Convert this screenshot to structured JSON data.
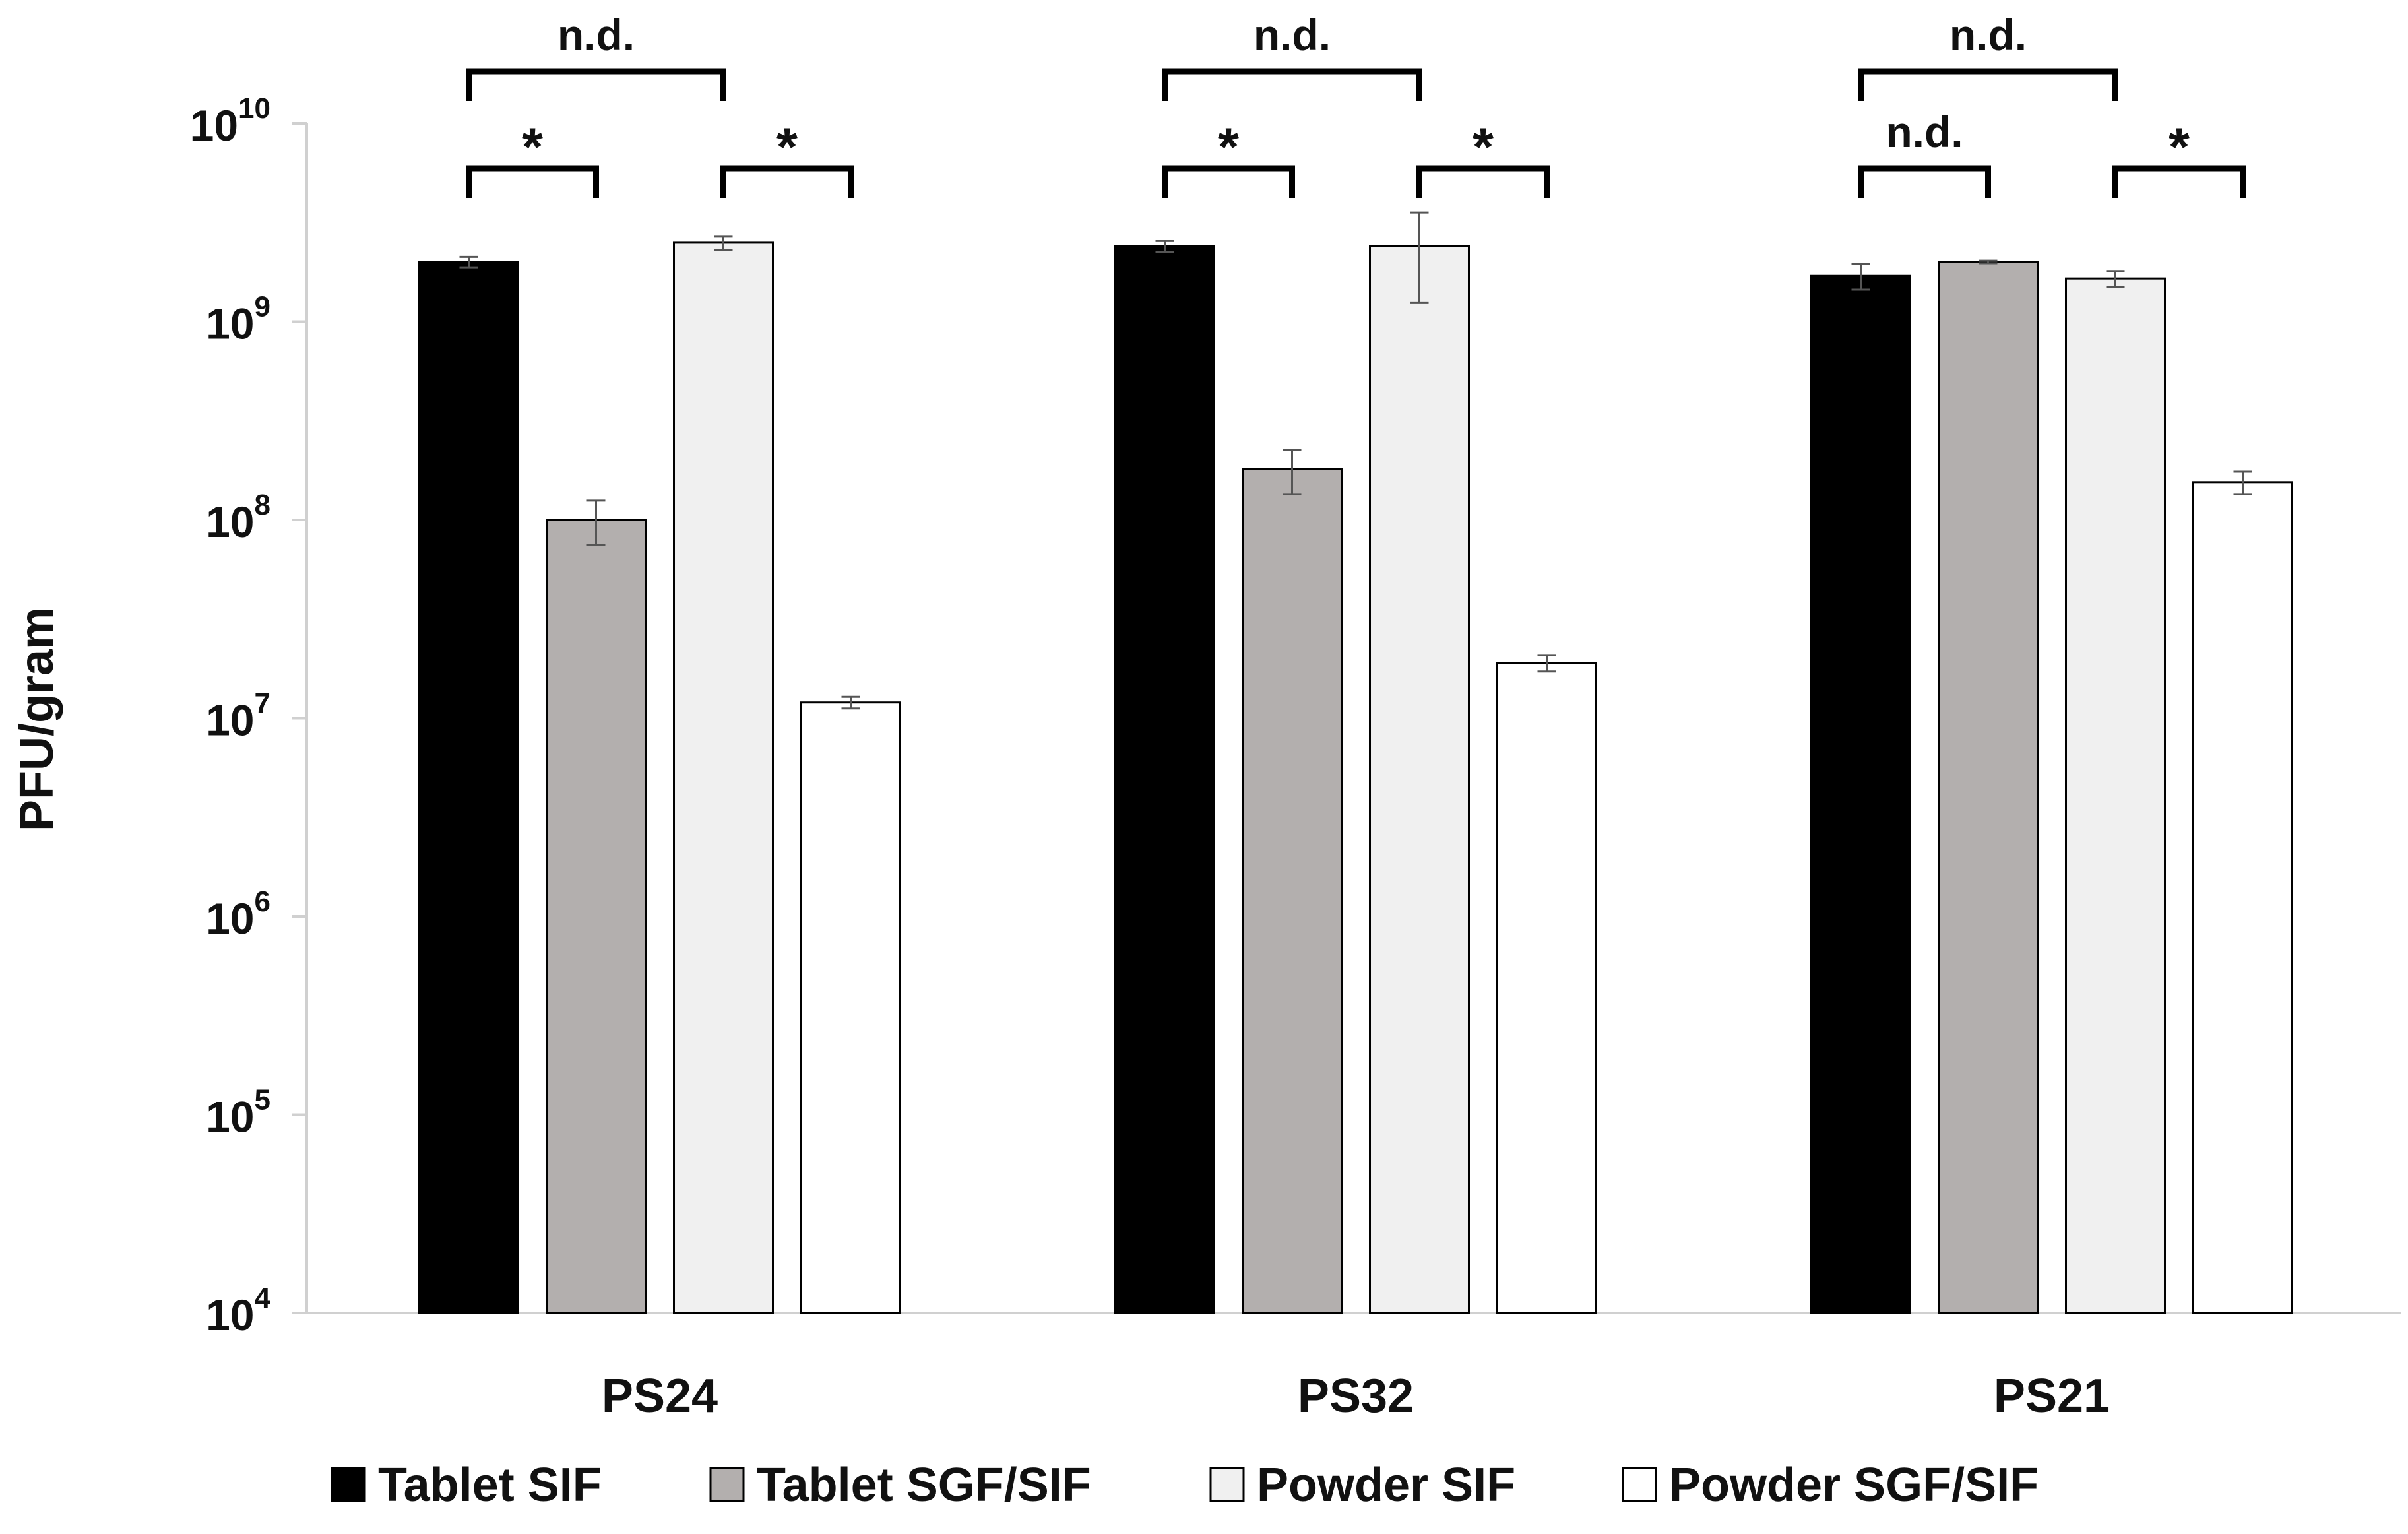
{
  "chart_data": {
    "type": "bar",
    "yscale": "log",
    "ylabel": "PFU/gram",
    "xlabel": "",
    "ylim": [
      10000,
      10000000000
    ],
    "yticks": [
      {
        "value": 10000,
        "base": "10",
        "exp": "4"
      },
      {
        "value": 100000,
        "base": "10",
        "exp": "5"
      },
      {
        "value": 1000000,
        "base": "10",
        "exp": "6"
      },
      {
        "value": 10000000,
        "base": "10",
        "exp": "7"
      },
      {
        "value": 100000000,
        "base": "10",
        "exp": "8"
      },
      {
        "value": 1000000000,
        "base": "10",
        "exp": "9"
      },
      {
        "value": 10000000000,
        "base": "10",
        "exp": "10"
      }
    ],
    "categories": [
      "PS24",
      "PS32",
      "PS21"
    ],
    "series": [
      {
        "name": "Tablet SIF",
        "color": "#000000",
        "values": [
          2000000000,
          2400000000,
          1700000000
        ],
        "errors": [
          120000000,
          150000000,
          250000000
        ]
      },
      {
        "name": "Tablet SGF/SIF",
        "color": "#b3afae",
        "values": [
          100000000,
          180000000,
          2000000000
        ],
        "errors": [
          25000000,
          45000000,
          30000000
        ]
      },
      {
        "name": "Powder SIF",
        "color": "#f0f0f0",
        "values": [
          2500000000,
          2400000000,
          1650000000
        ],
        "errors": [
          200000000,
          1150000000,
          150000000
        ]
      },
      {
        "name": "Powder SGF/SIF",
        "color": "#ffffff",
        "values": [
          12000000,
          19000000,
          155000000
        ],
        "errors": [
          800000,
          1800000,
          20000000
        ]
      }
    ],
    "significance": [
      {
        "category": "PS24",
        "from_series": 0,
        "to_series": 2,
        "label": "n.d.",
        "level": "upper"
      },
      {
        "category": "PS24",
        "from_series": 0,
        "to_series": 1,
        "label": "*",
        "level": "lower"
      },
      {
        "category": "PS24",
        "from_series": 2,
        "to_series": 3,
        "label": "*",
        "level": "lower"
      },
      {
        "category": "PS32",
        "from_series": 0,
        "to_series": 2,
        "label": "n.d.",
        "level": "upper"
      },
      {
        "category": "PS32",
        "from_series": 0,
        "to_series": 1,
        "label": "*",
        "level": "lower"
      },
      {
        "category": "PS32",
        "from_series": 2,
        "to_series": 3,
        "label": "*",
        "level": "lower"
      },
      {
        "category": "PS21",
        "from_series": 0,
        "to_series": 2,
        "label": "n.d.",
        "level": "upper"
      },
      {
        "category": "PS21",
        "from_series": 0,
        "to_series": 1,
        "label": "n.d.",
        "level": "lower"
      },
      {
        "category": "PS21",
        "from_series": 2,
        "to_series": 3,
        "label": "*",
        "level": "lower"
      }
    ],
    "legend_position": "bottom",
    "grid": false
  }
}
